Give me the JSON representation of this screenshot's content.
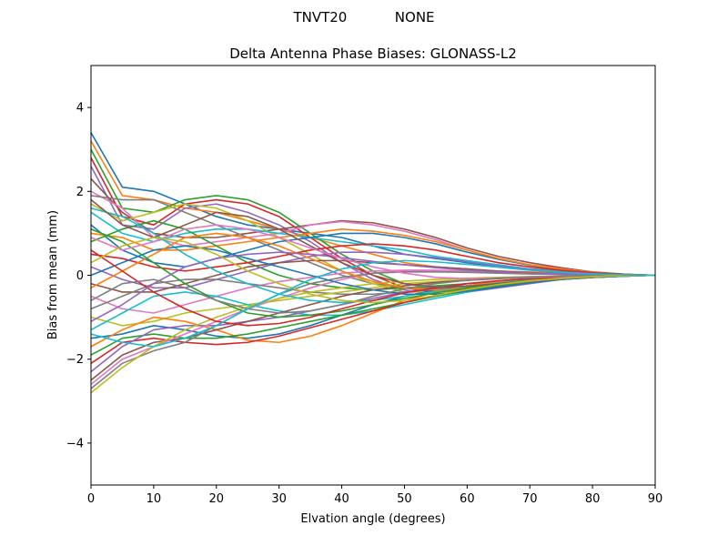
{
  "chart_data": {
    "type": "line",
    "suptitle": "TNVT20           NONE",
    "title": "Delta Antenna Phase Biases: GLONASS-L2",
    "xlabel": "Elvation angle (degrees)",
    "ylabel": "Bias from mean (mm)",
    "xlim": [
      0,
      90
    ],
    "ylim": [
      -5,
      5
    ],
    "xticks": [
      0,
      10,
      20,
      30,
      40,
      50,
      60,
      70,
      80,
      90
    ],
    "yticks": [
      -4,
      -2,
      0,
      2,
      4
    ],
    "ytick_labels": [
      "−4",
      "−2",
      "0",
      "2",
      "4"
    ],
    "grid": false,
    "x": [
      0,
      5,
      10,
      15,
      20,
      25,
      30,
      35,
      40,
      45,
      50,
      55,
      60,
      65,
      70,
      75,
      80,
      85,
      90
    ],
    "palette": [
      "#1f77b4",
      "#ff7f0e",
      "#2ca02c",
      "#d62728",
      "#9467bd",
      "#8c564b",
      "#e377c2",
      "#7f7f7f",
      "#bcbd22",
      "#17becf"
    ],
    "series": [
      {
        "values": [
          3.4,
          2.1,
          2.0,
          1.7,
          1.4,
          1.2,
          1.1,
          1.0,
          0.9,
          0.7,
          0.5,
          0.4,
          0.3,
          0.2,
          0.15,
          0.1,
          0.05,
          0.02,
          0
        ]
      },
      {
        "values": [
          3.2,
          1.9,
          1.8,
          1.6,
          1.5,
          1.3,
          1.1,
          0.9,
          0.7,
          0.5,
          0.3,
          0.2,
          0.15,
          0.1,
          0.08,
          0.05,
          0.03,
          0.01,
          0
        ]
      },
      {
        "values": [
          3.0,
          1.6,
          1.5,
          1.8,
          1.9,
          1.8,
          1.5,
          1.0,
          0.5,
          0.1,
          -0.2,
          -0.3,
          -0.3,
          -0.2,
          -0.15,
          -0.1,
          -0.05,
          -0.02,
          0
        ]
      },
      {
        "values": [
          2.8,
          1.4,
          1.2,
          1.7,
          1.8,
          1.7,
          1.4,
          0.9,
          0.4,
          0.0,
          -0.3,
          -0.4,
          -0.35,
          -0.25,
          -0.15,
          -0.1,
          -0.05,
          -0.02,
          0
        ]
      },
      {
        "values": [
          2.6,
          1.2,
          1.1,
          1.6,
          1.7,
          1.5,
          1.2,
          0.8,
          0.3,
          -0.1,
          -0.35,
          -0.45,
          -0.4,
          -0.3,
          -0.2,
          -0.1,
          -0.05,
          -0.02,
          0
        ]
      },
      {
        "values": [
          2.3,
          1.5,
          1.0,
          0.9,
          0.9,
          1.0,
          1.1,
          1.2,
          1.3,
          1.25,
          1.1,
          0.9,
          0.65,
          0.45,
          0.3,
          0.18,
          0.08,
          0.03,
          0
        ]
      },
      {
        "values": [
          2.0,
          1.6,
          0.9,
          0.7,
          0.8,
          0.9,
          1.0,
          1.2,
          1.28,
          1.2,
          1.05,
          0.85,
          0.6,
          0.4,
          0.25,
          0.15,
          0.07,
          0.02,
          0
        ]
      },
      {
        "values": [
          1.9,
          1.8,
          1.8,
          1.5,
          1.2,
          0.9,
          0.6,
          0.3,
          0.0,
          -0.2,
          -0.3,
          -0.3,
          -0.25,
          -0.2,
          -0.12,
          -0.08,
          -0.04,
          -0.01,
          0
        ]
      },
      {
        "values": [
          1.7,
          1.3,
          1.5,
          1.7,
          1.6,
          1.3,
          0.9,
          0.5,
          0.1,
          -0.2,
          -0.4,
          -0.4,
          -0.35,
          -0.25,
          -0.15,
          -0.1,
          -0.05,
          -0.02,
          0
        ]
      },
      {
        "values": [
          1.5,
          1.0,
          0.8,
          1.0,
          1.1,
          1.1,
          1.0,
          0.9,
          0.8,
          0.7,
          0.6,
          0.45,
          0.35,
          0.25,
          0.15,
          0.1,
          0.05,
          0.02,
          0
        ]
      },
      {
        "values": [
          1.2,
          0.6,
          0.3,
          0.2,
          0.4,
          0.6,
          0.8,
          0.9,
          1.0,
          1.0,
          0.9,
          0.75,
          0.55,
          0.38,
          0.24,
          0.14,
          0.07,
          0.02,
          0
        ]
      },
      {
        "values": [
          1.0,
          0.9,
          0.6,
          0.6,
          0.7,
          0.8,
          0.9,
          1.0,
          1.1,
          1.05,
          0.95,
          0.8,
          0.6,
          0.4,
          0.25,
          0.15,
          0.07,
          0.02,
          0
        ]
      },
      {
        "values": [
          0.8,
          1.1,
          1.3,
          1.1,
          0.7,
          0.3,
          0.0,
          -0.2,
          -0.3,
          -0.35,
          -0.3,
          -0.25,
          -0.2,
          -0.15,
          -0.1,
          -0.06,
          -0.03,
          -0.01,
          0
        ]
      },
      {
        "values": [
          0.5,
          0.4,
          0.2,
          0.1,
          0.2,
          0.3,
          0.45,
          0.6,
          0.7,
          0.75,
          0.7,
          0.6,
          0.45,
          0.3,
          0.2,
          0.12,
          0.06,
          0.02,
          0
        ]
      },
      {
        "values": [
          0.2,
          -0.1,
          -0.3,
          -0.3,
          -0.1,
          0.1,
          0.3,
          0.45,
          0.55,
          0.55,
          0.5,
          0.42,
          0.32,
          0.22,
          0.14,
          0.08,
          0.04,
          0.01,
          0
        ]
      },
      {
        "values": [
          -0.2,
          -0.4,
          -0.4,
          -0.2,
          0.0,
          0.2,
          0.3,
          0.35,
          0.35,
          0.3,
          0.25,
          0.2,
          0.15,
          0.1,
          0.06,
          0.04,
          0.02,
          0.01,
          0
        ]
      },
      {
        "values": [
          -0.5,
          -0.8,
          -0.9,
          -0.7,
          -0.5,
          -0.3,
          -0.15,
          -0.05,
          0.05,
          0.1,
          0.12,
          0.12,
          0.1,
          0.07,
          0.05,
          0.03,
          0.02,
          0.01,
          0
        ]
      },
      {
        "values": [
          -0.8,
          -0.5,
          -0.2,
          -0.1,
          -0.1,
          -0.2,
          -0.3,
          -0.4,
          -0.45,
          -0.45,
          -0.4,
          -0.33,
          -0.25,
          -0.17,
          -0.1,
          -0.06,
          -0.03,
          -0.01,
          0
        ]
      },
      {
        "values": [
          -1.0,
          -1.2,
          -1.1,
          -0.9,
          -0.8,
          -0.7,
          -0.6,
          -0.5,
          -0.4,
          -0.3,
          -0.2,
          -0.15,
          -0.1,
          -0.07,
          -0.05,
          -0.03,
          -0.02,
          -0.01,
          0
        ]
      },
      {
        "values": [
          -1.3,
          -0.9,
          -0.5,
          -0.4,
          -0.5,
          -0.7,
          -0.85,
          -0.95,
          -0.95,
          -0.85,
          -0.7,
          -0.55,
          -0.4,
          -0.27,
          -0.17,
          -0.1,
          -0.05,
          -0.02,
          0
        ]
      },
      {
        "values": [
          -1.5,
          -1.4,
          -1.2,
          -1.3,
          -1.45,
          -1.5,
          -1.4,
          -1.2,
          -0.95,
          -0.7,
          -0.5,
          -0.35,
          -0.25,
          -0.16,
          -0.1,
          -0.06,
          -0.03,
          -0.01,
          0
        ]
      },
      {
        "values": [
          -1.7,
          -1.3,
          -1.0,
          -1.1,
          -1.3,
          -1.55,
          -1.6,
          -1.45,
          -1.2,
          -0.9,
          -0.6,
          -0.4,
          -0.25,
          -0.15,
          -0.08,
          -0.05,
          -0.02,
          -0.01,
          0
        ]
      },
      {
        "values": [
          -1.9,
          -1.5,
          -1.4,
          -1.5,
          -1.5,
          -1.4,
          -1.25,
          -1.1,
          -0.95,
          -0.8,
          -0.65,
          -0.5,
          -0.37,
          -0.25,
          -0.15,
          -0.09,
          -0.05,
          -0.02,
          0
        ]
      },
      {
        "values": [
          -2.1,
          -1.6,
          -1.5,
          -1.6,
          -1.65,
          -1.6,
          -1.45,
          -1.25,
          -1.05,
          -0.85,
          -0.65,
          -0.48,
          -0.33,
          -0.22,
          -0.13,
          -0.08,
          -0.04,
          -0.01,
          0
        ]
      },
      {
        "values": [
          -2.3,
          -1.7,
          -1.3,
          -1.2,
          -1.2,
          -1.1,
          -1.0,
          -0.85,
          -0.7,
          -0.55,
          -0.4,
          -0.3,
          -0.2,
          -0.13,
          -0.08,
          -0.05,
          -0.02,
          -0.01,
          0
        ]
      },
      {
        "values": [
          -2.5,
          -1.9,
          -1.6,
          -1.5,
          -1.3,
          -1.1,
          -0.9,
          -0.7,
          -0.5,
          -0.35,
          -0.25,
          -0.17,
          -0.12,
          -0.08,
          -0.05,
          -0.03,
          -0.02,
          -0.01,
          0
        ]
      },
      {
        "values": [
          -2.6,
          -2.0,
          -1.7,
          -1.4,
          -1.1,
          -0.8,
          -0.55,
          -0.3,
          -0.1,
          0.05,
          0.1,
          0.1,
          0.08,
          0.06,
          0.04,
          0.02,
          0.01,
          0.0,
          0
        ]
      },
      {
        "values": [
          -2.7,
          -2.1,
          -1.8,
          -1.6,
          -1.2,
          -0.8,
          -0.45,
          -0.2,
          -0.05,
          0.05,
          0.08,
          0.08,
          0.07,
          0.05,
          0.03,
          0.02,
          0.01,
          0.0,
          0
        ]
      },
      {
        "values": [
          -2.8,
          -2.2,
          -1.7,
          -1.3,
          -1.0,
          -0.75,
          -0.55,
          -0.4,
          -0.3,
          -0.2,
          -0.14,
          -0.1,
          -0.07,
          -0.05,
          -0.03,
          -0.02,
          -0.01,
          0.0,
          0
        ]
      },
      {
        "values": [
          1.6,
          1.4,
          1.0,
          0.5,
          0.1,
          -0.2,
          -0.45,
          -0.6,
          -0.65,
          -0.6,
          -0.5,
          -0.38,
          -0.27,
          -0.18,
          -0.11,
          -0.06,
          -0.03,
          -0.01,
          0
        ]
      },
      {
        "values": [
          0.0,
          0.3,
          0.6,
          0.7,
          0.6,
          0.4,
          0.2,
          0.0,
          -0.2,
          -0.35,
          -0.45,
          -0.45,
          -0.38,
          -0.28,
          -0.18,
          -0.1,
          -0.05,
          -0.02,
          0
        ]
      },
      {
        "values": [
          -0.3,
          0.1,
          0.5,
          0.9,
          1.0,
          0.9,
          0.7,
          0.4,
          0.1,
          -0.15,
          -0.3,
          -0.35,
          -0.3,
          -0.22,
          -0.14,
          -0.08,
          -0.04,
          -0.01,
          0
        ]
      },
      {
        "values": [
          1.1,
          0.8,
          0.3,
          -0.2,
          -0.6,
          -0.9,
          -1.0,
          -0.95,
          -0.85,
          -0.7,
          -0.55,
          -0.42,
          -0.3,
          -0.2,
          -0.12,
          -0.07,
          -0.03,
          -0.01,
          0
        ]
      },
      {
        "values": [
          0.6,
          0.1,
          -0.4,
          -0.8,
          -1.1,
          -1.2,
          -1.15,
          -1.0,
          -0.8,
          -0.6,
          -0.42,
          -0.3,
          -0.2,
          -0.13,
          -0.08,
          -0.05,
          -0.02,
          -0.01,
          0
        ]
      },
      {
        "values": [
          -1.1,
          -0.7,
          -0.2,
          0.2,
          0.4,
          0.5,
          0.55,
          0.5,
          0.42,
          0.33,
          0.25,
          0.18,
          0.12,
          0.08,
          0.05,
          0.03,
          0.01,
          0.0,
          0
        ]
      },
      {
        "values": [
          1.8,
          1.2,
          0.9,
          1.2,
          1.5,
          1.4,
          1.1,
          0.7,
          0.3,
          0.0,
          -0.2,
          -0.28,
          -0.26,
          -0.2,
          -0.13,
          -0.07,
          -0.03,
          -0.01,
          0
        ]
      },
      {
        "values": [
          0.9,
          0.6,
          0.8,
          1.1,
          1.2,
          1.1,
          0.9,
          0.65,
          0.4,
          0.2,
          0.05,
          -0.05,
          -0.08,
          -0.07,
          -0.05,
          -0.03,
          -0.02,
          -0.01,
          0
        ]
      },
      {
        "values": [
          -0.6,
          -0.2,
          -0.1,
          -0.3,
          -0.6,
          -0.8,
          -0.9,
          -0.85,
          -0.7,
          -0.5,
          -0.32,
          -0.2,
          -0.12,
          -0.07,
          -0.04,
          -0.02,
          -0.01,
          0.0,
          0
        ]
      },
      {
        "values": [
          0.3,
          0.7,
          0.9,
          0.8,
          0.5,
          0.1,
          -0.2,
          -0.45,
          -0.6,
          -0.65,
          -0.6,
          -0.48,
          -0.34,
          -0.22,
          -0.13,
          -0.07,
          -0.03,
          -0.01,
          0
        ]
      },
      {
        "values": [
          -1.4,
          -1.6,
          -1.7,
          -1.5,
          -1.2,
          -0.8,
          -0.45,
          -0.1,
          0.15,
          0.3,
          0.35,
          0.32,
          0.26,
          0.19,
          0.12,
          0.07,
          0.03,
          0.01,
          0
        ]
      }
    ]
  }
}
